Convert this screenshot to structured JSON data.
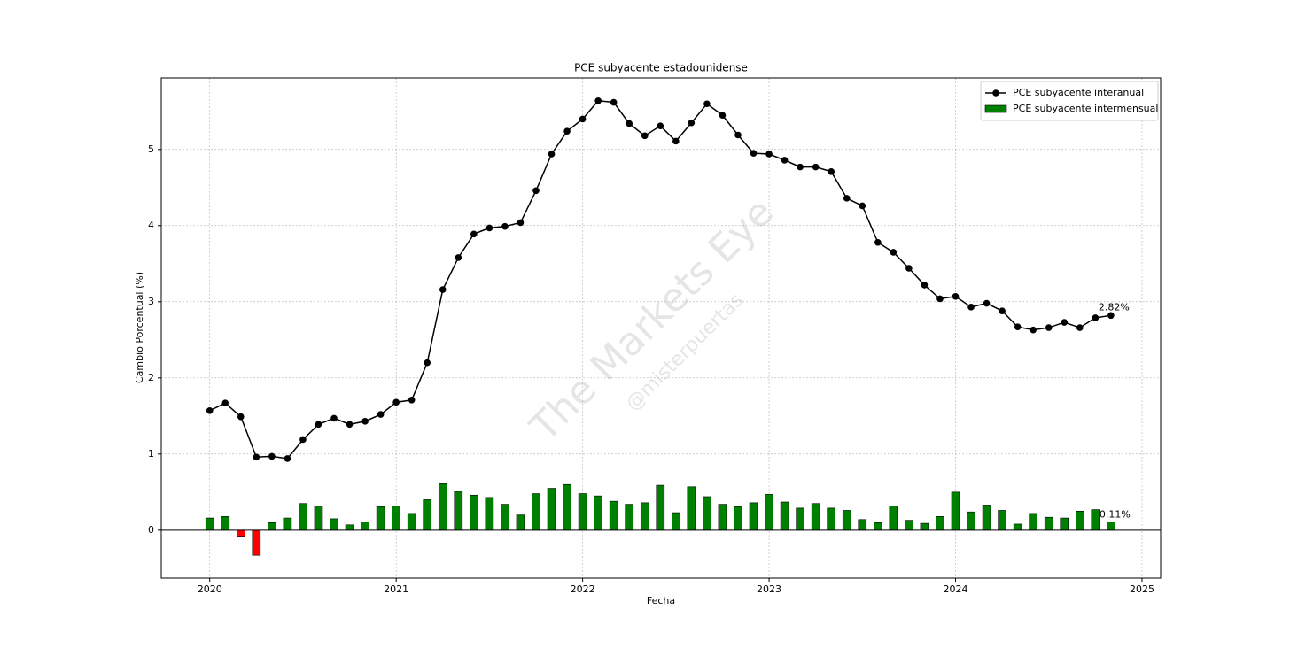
{
  "chart_data": {
    "type": "line_bar",
    "title": "PCE subyacente estadounidense",
    "x_label": "Fecha",
    "y_label": "Cambio Porcentual (%)",
    "watermark": [
      "The Markets Eye",
      "@misterpuertas"
    ],
    "x": [
      "2020-01",
      "2020-02",
      "2020-03",
      "2020-04",
      "2020-05",
      "2020-06",
      "2020-07",
      "2020-08",
      "2020-09",
      "2020-10",
      "2020-11",
      "2020-12",
      "2021-01",
      "2021-02",
      "2021-03",
      "2021-04",
      "2021-05",
      "2021-06",
      "2021-07",
      "2021-08",
      "2021-09",
      "2021-10",
      "2021-11",
      "2021-12",
      "2022-01",
      "2022-02",
      "2022-03",
      "2022-04",
      "2022-05",
      "2022-06",
      "2022-07",
      "2022-08",
      "2022-09",
      "2022-10",
      "2022-11",
      "2022-12",
      "2023-01",
      "2023-02",
      "2023-03",
      "2023-04",
      "2023-05",
      "2023-06",
      "2023-07",
      "2023-08",
      "2023-09",
      "2023-10",
      "2023-11",
      "2023-12",
      "2024-01",
      "2024-02",
      "2024-03",
      "2024-04",
      "2024-05",
      "2024-06",
      "2024-07",
      "2024-08",
      "2024-09",
      "2024-10",
      "2024-11"
    ],
    "series": [
      {
        "name": "PCE subyacente interanual",
        "type": "line",
        "color": "#000000",
        "values": [
          1.57,
          1.67,
          1.49,
          0.96,
          0.97,
          0.94,
          1.19,
          1.39,
          1.47,
          1.39,
          1.43,
          1.52,
          1.68,
          1.71,
          2.2,
          3.16,
          3.58,
          3.89,
          3.97,
          3.99,
          4.04,
          4.46,
          4.94,
          5.24,
          5.4,
          5.64,
          5.62,
          5.34,
          5.18,
          5.31,
          5.11,
          5.35,
          5.6,
          5.45,
          5.19,
          4.95,
          4.94,
          4.86,
          4.77,
          4.77,
          4.71,
          4.36,
          4.26,
          3.78,
          3.65,
          3.44,
          3.22,
          3.04,
          3.07,
          2.93,
          2.98,
          2.88,
          2.67,
          2.63,
          2.66,
          2.73,
          2.66,
          2.79,
          2.82
        ],
        "value_labels": [
          null,
          null,
          null,
          null,
          null,
          null,
          null,
          null,
          null,
          null,
          null,
          null,
          null,
          null,
          null,
          null,
          null,
          null,
          null,
          null,
          null,
          null,
          null,
          null,
          null,
          null,
          null,
          null,
          null,
          null,
          null,
          null,
          null,
          null,
          null,
          null,
          null,
          null,
          null,
          null,
          null,
          null,
          null,
          null,
          null,
          null,
          null,
          null,
          null,
          null,
          null,
          null,
          null,
          null,
          null,
          null,
          null,
          null,
          "2.82%"
        ]
      },
      {
        "name": "PCE subyacente intermensual",
        "type": "bar",
        "color": "#008000",
        "negative_color": "#ff0000",
        "values": [
          0.16,
          0.18,
          -0.08,
          -0.33,
          0.1,
          0.16,
          0.35,
          0.32,
          0.15,
          0.07,
          0.11,
          0.31,
          0.32,
          0.22,
          0.4,
          0.61,
          0.51,
          0.46,
          0.43,
          0.34,
          0.2,
          0.48,
          0.55,
          0.6,
          0.48,
          0.45,
          0.38,
          0.34,
          0.36,
          0.59,
          0.23,
          0.57,
          0.44,
          0.34,
          0.31,
          0.36,
          0.47,
          0.37,
          0.29,
          0.35,
          0.29,
          0.26,
          0.14,
          0.1,
          0.32,
          0.13,
          0.09,
          0.18,
          0.5,
          0.24,
          0.33,
          0.26,
          0.08,
          0.22,
          0.17,
          0.16,
          0.25,
          0.27,
          0.11
        ],
        "value_labels": [
          null,
          null,
          null,
          null,
          null,
          null,
          null,
          null,
          null,
          null,
          null,
          null,
          null,
          null,
          null,
          null,
          null,
          null,
          null,
          null,
          null,
          null,
          null,
          null,
          null,
          null,
          null,
          null,
          null,
          null,
          null,
          null,
          null,
          null,
          null,
          null,
          null,
          null,
          null,
          null,
          null,
          null,
          null,
          null,
          null,
          null,
          null,
          null,
          null,
          null,
          null,
          null,
          null,
          null,
          null,
          null,
          null,
          null,
          "0.11%"
        ]
      }
    ],
    "xlim": [
      2019.74,
      2025.1
    ],
    "xticks": [
      2020,
      2021,
      2022,
      2023,
      2024,
      2025
    ],
    "ylim": [
      -0.63,
      5.94
    ],
    "yticks": [
      0,
      1,
      2,
      3,
      4,
      5
    ],
    "grid": true,
    "legend": "upper right"
  }
}
